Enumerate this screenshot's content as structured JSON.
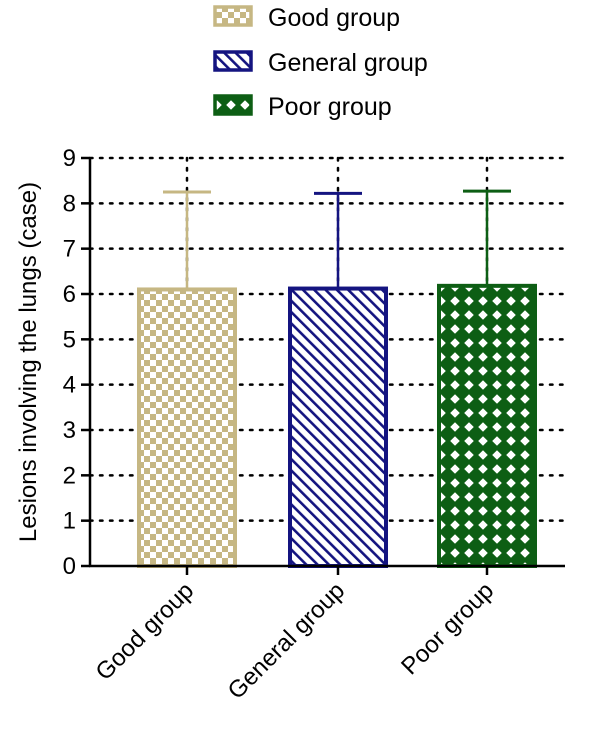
{
  "chart_data": {
    "type": "bar",
    "categories": [
      "Good group",
      "General group",
      "Poor group"
    ],
    "values": [
      6.1,
      6.12,
      6.18
    ],
    "error_upper": [
      8.25,
      8.22,
      8.27
    ],
    "ylabel": "Lesions involving the lungs (case)",
    "xlabel": "",
    "ylim": [
      0,
      9
    ],
    "yticks": [
      0,
      1,
      2,
      3,
      4,
      5,
      6,
      7,
      8,
      9
    ],
    "grid": "dotted",
    "legend_position": "top",
    "legend": [
      {
        "label": "Good group",
        "pattern": "checker"
      },
      {
        "label": "General group",
        "pattern": "diagonal-stripes"
      },
      {
        "label": "Poor group",
        "pattern": "diamond-lattice"
      }
    ],
    "colors": [
      "#c6b783",
      "#141480",
      "#0d5e14"
    ]
  }
}
